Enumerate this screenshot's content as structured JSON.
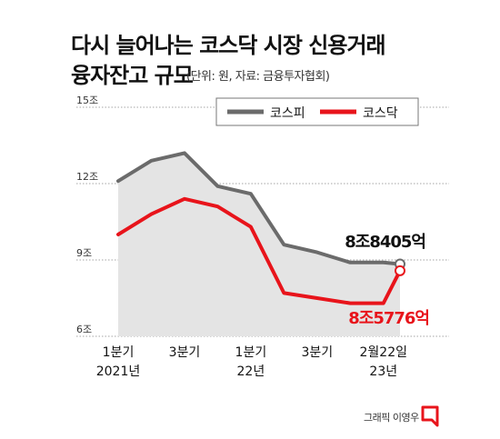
{
  "title": [
    "다시 늘어나는 코스닥 시장 신용거래",
    "융자잔고 규모"
  ],
  "source": "(단위: 원, 자료: 금융투자협회)",
  "credit": "그래픽 이영우",
  "colors": {
    "kospi": "#6b6b6b",
    "kosdaq": "#e8141b",
    "area": "#e4e4e4",
    "grid": "#888888"
  },
  "chart_data": {
    "type": "line",
    "yticks": [
      "15조",
      "12조",
      "9조",
      "6조"
    ],
    "yvalues": [
      15,
      12,
      9,
      6
    ],
    "ylim": [
      6,
      15
    ],
    "xtick_labels": [
      [
        "1분기",
        "2021년"
      ],
      [
        "3분기",
        ""
      ],
      [
        "1분기",
        "22년"
      ],
      [
        "3분기",
        ""
      ],
      [
        "2월22일",
        "23년"
      ]
    ],
    "xtick_positions": [
      0,
      2,
      4,
      6,
      8
    ],
    "xlim": [
      0,
      8.5
    ],
    "series": [
      {
        "name": "코스피",
        "key": "kospi",
        "x": [
          0,
          1,
          2,
          3,
          4,
          5,
          6,
          7,
          8,
          8.5
        ],
        "values": [
          12.1,
          12.9,
          13.2,
          11.9,
          11.6,
          9.6,
          9.3,
          8.9,
          8.9,
          8.8405
        ]
      },
      {
        "name": "코스닥",
        "key": "kosdaq",
        "x": [
          0,
          1,
          2,
          3,
          4,
          5,
          6,
          7,
          8,
          8.5
        ],
        "values": [
          10.0,
          10.8,
          11.4,
          11.1,
          10.3,
          7.7,
          7.5,
          7.3,
          7.3,
          8.5776
        ]
      }
    ],
    "annotations": [
      {
        "series": "kospi",
        "text": "8조8405억"
      },
      {
        "series": "kosdaq",
        "text": "8조5776억"
      }
    ],
    "legend": "top-right"
  }
}
